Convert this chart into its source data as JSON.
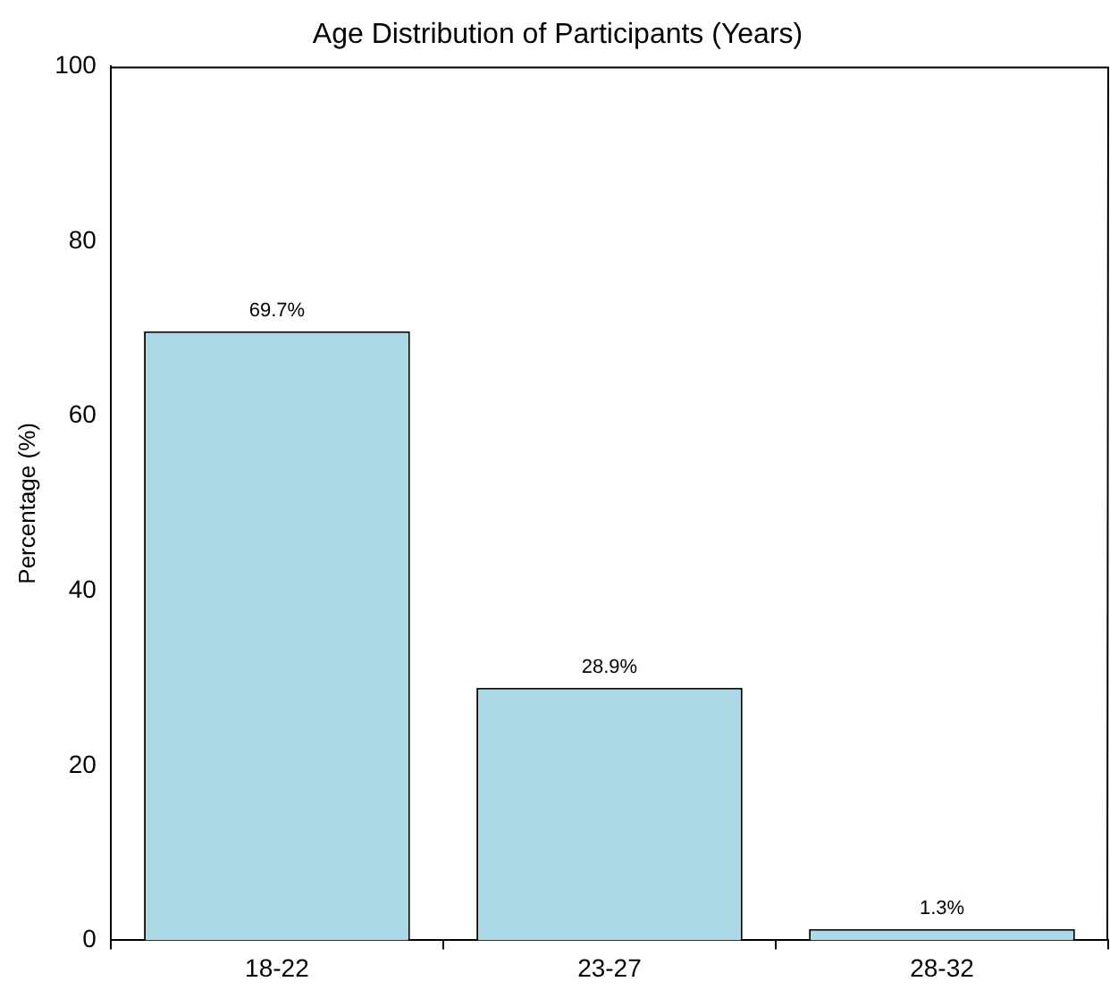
{
  "chart_data": {
    "type": "bar",
    "title": "Age Distribution of Participants (Years)",
    "ylabel": "Percentage (%)",
    "categories": [
      "18-22",
      "23-27",
      "28-32"
    ],
    "values": [
      69.7,
      28.9,
      1.3
    ],
    "value_labels": [
      "69.7%",
      "28.9%",
      "1.3%"
    ],
    "color": "#add8e6",
    "ylim": [
      0,
      100
    ],
    "yticks": [
      0,
      20,
      40,
      60,
      80,
      100
    ],
    "grid": false,
    "legend": false
  }
}
